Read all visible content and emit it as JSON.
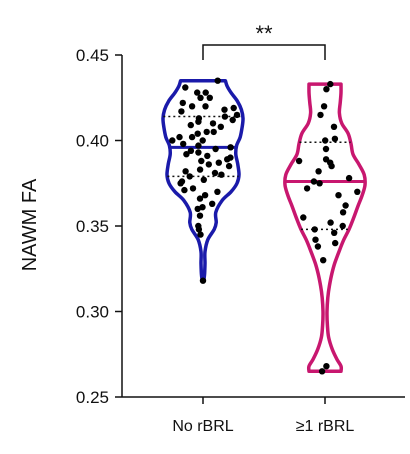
{
  "chart_data": {
    "type": "violin",
    "ylabel": "NAWM FA",
    "ylim": [
      0.25,
      0.45
    ],
    "yticks": [
      0.25,
      0.3,
      0.35,
      0.4,
      0.45
    ],
    "ytick_labels": [
      "0.25",
      "0.30",
      "0.35",
      "0.40",
      "0.45"
    ],
    "categories": [
      "No rBRL",
      "≥1 rBRL"
    ],
    "significance": "**",
    "series": [
      {
        "category": "No rBRL",
        "color": "#1a1aaa",
        "median": 0.396,
        "q1": 0.379,
        "q3": 0.414,
        "min": 0.318,
        "max": 0.435,
        "density": [
          [
            0.318,
            0.02
          ],
          [
            0.322,
            0.04
          ],
          [
            0.328,
            0.05
          ],
          [
            0.335,
            0.05
          ],
          [
            0.342,
            0.12
          ],
          [
            0.348,
            0.28
          ],
          [
            0.352,
            0.33
          ],
          [
            0.358,
            0.32
          ],
          [
            0.365,
            0.48
          ],
          [
            0.37,
            0.7
          ],
          [
            0.375,
            0.85
          ],
          [
            0.38,
            0.9
          ],
          [
            0.386,
            0.87
          ],
          [
            0.392,
            0.82
          ],
          [
            0.397,
            0.84
          ],
          [
            0.402,
            0.93
          ],
          [
            0.408,
            0.98
          ],
          [
            0.413,
            1.0
          ],
          [
            0.418,
            0.96
          ],
          [
            0.423,
            0.86
          ],
          [
            0.428,
            0.7
          ],
          [
            0.432,
            0.6
          ],
          [
            0.435,
            0.56
          ]
        ],
        "points": [
          0.435,
          0.431,
          0.428,
          0.428,
          0.425,
          0.425,
          0.422,
          0.42,
          0.42,
          0.419,
          0.418,
          0.417,
          0.415,
          0.414,
          0.413,
          0.412,
          0.411,
          0.41,
          0.409,
          0.408,
          0.405,
          0.405,
          0.404,
          0.402,
          0.402,
          0.4,
          0.4,
          0.398,
          0.397,
          0.396,
          0.395,
          0.394,
          0.393,
          0.392,
          0.391,
          0.39,
          0.389,
          0.388,
          0.387,
          0.386,
          0.385,
          0.383,
          0.382,
          0.381,
          0.38,
          0.379,
          0.377,
          0.376,
          0.375,
          0.372,
          0.371,
          0.37,
          0.368,
          0.366,
          0.363,
          0.361,
          0.36,
          0.356,
          0.35,
          0.348,
          0.345,
          0.318
        ]
      },
      {
        "category": "≥1 rBRL",
        "color": "#c8176f",
        "median": 0.376,
        "q1": 0.348,
        "q3": 0.399,
        "min": 0.265,
        "max": 0.433,
        "density": [
          [
            0.265,
            0.4
          ],
          [
            0.268,
            0.4
          ],
          [
            0.272,
            0.3
          ],
          [
            0.278,
            0.18
          ],
          [
            0.285,
            0.09
          ],
          [
            0.292,
            0.06
          ],
          [
            0.3,
            0.05
          ],
          [
            0.308,
            0.07
          ],
          [
            0.315,
            0.11
          ],
          [
            0.322,
            0.17
          ],
          [
            0.328,
            0.24
          ],
          [
            0.335,
            0.35
          ],
          [
            0.342,
            0.47
          ],
          [
            0.348,
            0.6
          ],
          [
            0.355,
            0.72
          ],
          [
            0.362,
            0.83
          ],
          [
            0.368,
            0.93
          ],
          [
            0.374,
            1.0
          ],
          [
            0.38,
            0.98
          ],
          [
            0.386,
            0.85
          ],
          [
            0.392,
            0.7
          ],
          [
            0.398,
            0.65
          ],
          [
            0.404,
            0.58
          ],
          [
            0.41,
            0.42
          ],
          [
            0.416,
            0.36
          ],
          [
            0.422,
            0.38
          ],
          [
            0.428,
            0.4
          ],
          [
            0.433,
            0.4
          ]
        ],
        "points": [
          0.433,
          0.43,
          0.42,
          0.415,
          0.408,
          0.401,
          0.4,
          0.395,
          0.389,
          0.388,
          0.387,
          0.385,
          0.382,
          0.378,
          0.376,
          0.375,
          0.372,
          0.37,
          0.368,
          0.362,
          0.358,
          0.355,
          0.352,
          0.35,
          0.348,
          0.346,
          0.342,
          0.34,
          0.338,
          0.33,
          0.268,
          0.265
        ]
      }
    ]
  }
}
